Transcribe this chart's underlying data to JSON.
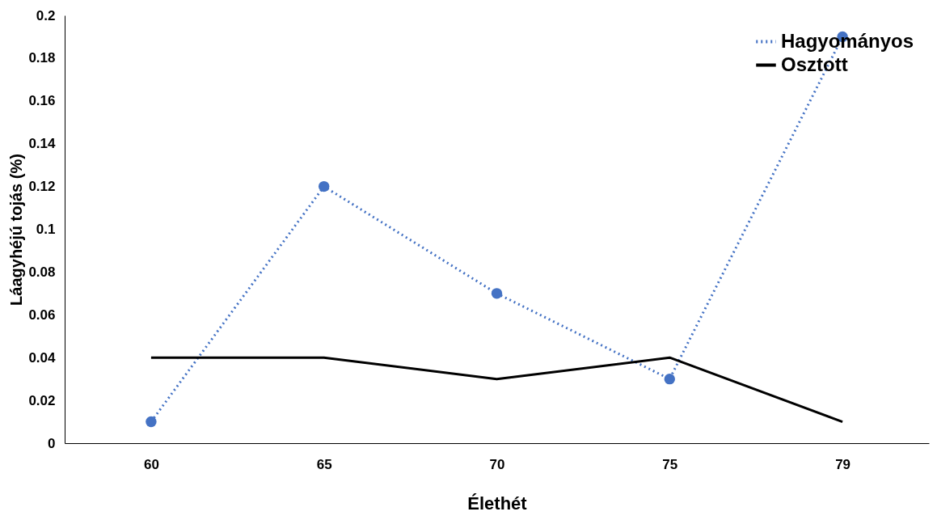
{
  "chart_data": {
    "type": "line",
    "xlabel": "Élethét",
    "ylabel": "Láagyhéjú tojás (%)",
    "categories": [
      "60",
      "65",
      "70",
      "75",
      "79"
    ],
    "series": [
      {
        "name": "Hagyományos",
        "color": "#4472c4",
        "line_style": "dotted",
        "marker": "circle",
        "values": [
          0.01,
          0.12,
          0.07,
          0.03,
          0.19
        ]
      },
      {
        "name": "Osztott",
        "color": "#000000",
        "line_style": "solid",
        "marker": "none",
        "values": [
          0.04,
          0.04,
          0.03,
          0.04,
          0.01
        ]
      }
    ],
    "ylim": [
      0,
      0.2
    ],
    "yticks": [
      {
        "value": 0,
        "label": "0"
      },
      0.02,
      0.04,
      0.06,
      0.08,
      {
        "value": 0.1,
        "label": "0.1"
      },
      0.12,
      0.14,
      0.16,
      0.18,
      {
        "value": 0.2,
        "label": "0.2"
      }
    ],
    "grid": false,
    "legend": "top right"
  }
}
